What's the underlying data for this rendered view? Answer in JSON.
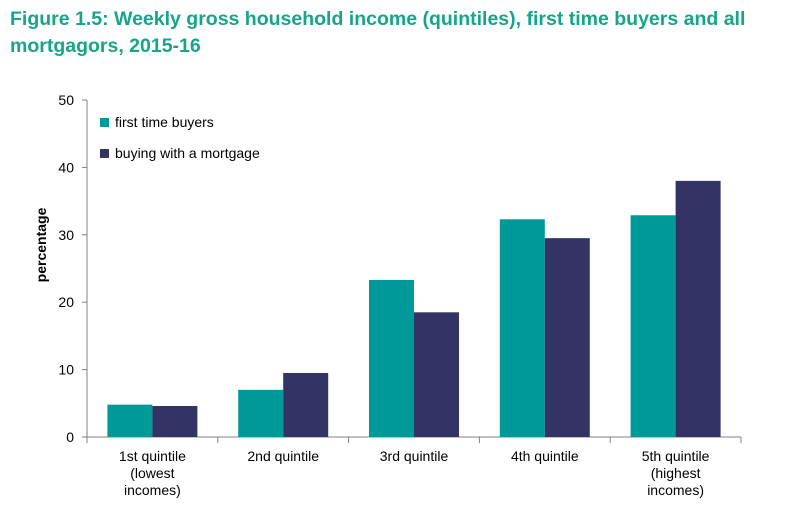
{
  "chart_data": {
    "type": "bar",
    "title": "Figure 1.5: Weekly gross household income (quintiles), first time buyers and all mortgagors, 2015-16",
    "ylabel": "percentage",
    "xlabel": "",
    "ylim": [
      0,
      50
    ],
    "yticks": [
      "0",
      "10",
      "20",
      "30",
      "40",
      "50"
    ],
    "grid": false,
    "legend_position": "top-left",
    "categories": [
      [
        "1st quintile",
        "(lowest",
        "incomes)"
      ],
      [
        "2nd quintile"
      ],
      [
        "3rd quintile"
      ],
      [
        "4th quintile"
      ],
      [
        "5th quintile",
        "(highest",
        "incomes)"
      ]
    ],
    "series": [
      {
        "name": "first time buyers",
        "color": "#009999",
        "values": [
          4.8,
          7.0,
          23.3,
          32.3,
          32.9
        ]
      },
      {
        "name": "buying with a mortgage",
        "color": "#333366",
        "values": [
          4.6,
          9.5,
          18.5,
          29.5,
          38.0
        ]
      }
    ]
  }
}
